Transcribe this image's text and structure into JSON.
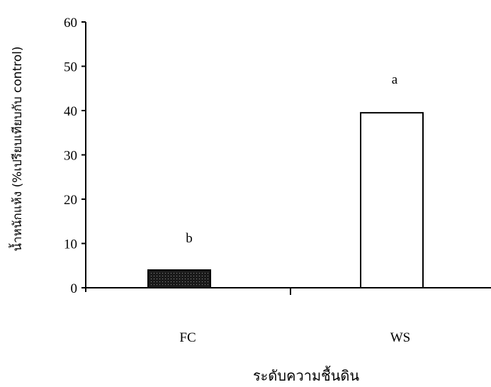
{
  "chart_data": {
    "type": "bar",
    "categories": [
      "FC",
      "WS"
    ],
    "values": [
      4,
      39.5
    ],
    "significance": [
      "b",
      "a"
    ],
    "bar_fills": [
      "#1a1a1a",
      "#ffffff"
    ],
    "ylabel": "น้ำหนักแห้ง (%เปรียบเทียบกับ control)",
    "xlabel": "ระดับความชื้นดิน",
    "ylim": [
      0,
      60
    ],
    "yticks": [
      0,
      10,
      20,
      30,
      40,
      50,
      60
    ],
    "grid": false
  }
}
